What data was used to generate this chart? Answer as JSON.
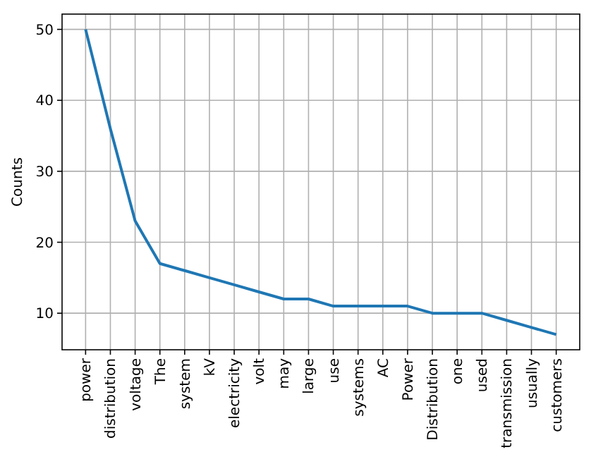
{
  "chart_data": {
    "type": "line",
    "ylabel": "Counts",
    "categories": [
      "power",
      "distribution",
      "voltage",
      "The",
      "system",
      "kV",
      "electricity",
      "volt",
      "may",
      "large",
      "use",
      "systems",
      "AC",
      "Power",
      "Distribution",
      "one",
      "used",
      "transmission",
      "usually",
      "customers"
    ],
    "series": [
      {
        "color": "#1f77b4",
        "values": [
          50,
          36,
          23,
          17,
          16,
          15,
          14,
          13,
          12,
          12,
          11,
          11,
          11,
          11,
          10,
          10,
          10,
          9,
          8,
          7
        ]
      }
    ],
    "ylim": [
      4.85,
      52.15
    ],
    "yticks": [
      10,
      20,
      30,
      40,
      50
    ],
    "grid": true,
    "line_style": "solid"
  }
}
